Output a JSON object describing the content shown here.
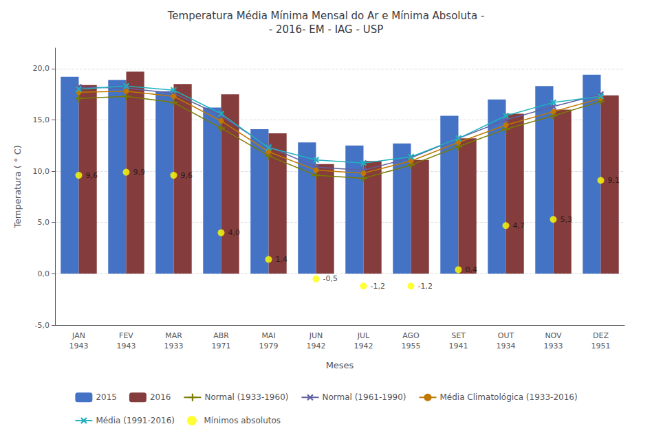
{
  "chart_data": {
    "type": "bar",
    "title": "Temperatura Média Mínima Mensal do Ar e Mínima Absoluta -\n- 2016- EM - IAG - USP",
    "xlabel": "Meses",
    "ylabel": "Temperatura ( ° C)",
    "categories": [
      "JAN\n1943",
      "FEV\n1943",
      "MAR\n1933",
      "ABR\n1971",
      "MAI\n1979",
      "JUN\n1942",
      "JUL\n1942",
      "AGO\n1955",
      "SET\n1941",
      "OUT\n1934",
      "NOV\n1933",
      "DEZ\n1951"
    ],
    "series": [
      {
        "name": "2015",
        "type": "bar",
        "color": "#4472C4",
        "values": [
          19.2,
          18.9,
          17.8,
          16.2,
          14.1,
          12.8,
          12.5,
          12.7,
          15.4,
          17.0,
          18.3,
          19.4
        ]
      },
      {
        "name": "2016",
        "type": "bar",
        "color": "#843C3C",
        "values": [
          18.4,
          19.7,
          18.5,
          17.5,
          13.7,
          10.7,
          11.0,
          11.1,
          13.2,
          15.6,
          16.0,
          17.4
        ]
      },
      {
        "name": "Normal (1933-1960)",
        "type": "line",
        "color": "#7B7B00",
        "marker": "plus",
        "values": [
          17.1,
          17.3,
          16.7,
          14.2,
          11.5,
          9.6,
          9.3,
          10.6,
          12.4,
          14.1,
          15.4,
          16.8
        ]
      },
      {
        "name": "Normal (1961-1990)",
        "type": "line",
        "color": "#6060A0",
        "marker": "x",
        "values": [
          18.2,
          18.1,
          17.6,
          15.4,
          12.4,
          10.4,
          10.1,
          11.3,
          13.2,
          15.0,
          16.3,
          17.5
        ]
      },
      {
        "name": "Média Climatológica (1933-2016)",
        "type": "line",
        "color": "#C07800",
        "marker": "circle",
        "values": [
          17.7,
          17.8,
          17.3,
          14.9,
          11.9,
          10.1,
          9.8,
          11.0,
          12.8,
          14.5,
          15.8,
          17.1
        ]
      },
      {
        "name": "Média (1991-2016)",
        "type": "line",
        "color": "#20B0C0",
        "marker": "x",
        "values": [
          18.0,
          18.3,
          17.9,
          15.6,
          12.3,
          11.1,
          10.8,
          11.4,
          13.2,
          15.4,
          16.7,
          17.3
        ]
      },
      {
        "name": "Mínimos absolutos",
        "type": "scatter",
        "color": "#FFFF00",
        "marker": "circle",
        "data_labels": true,
        "values": [
          9.6,
          9.9,
          9.6,
          4.0,
          1.4,
          -0.5,
          -1.2,
          -1.2,
          0.4,
          4.7,
          5.3,
          9.1
        ],
        "value_labels": [
          "9,6",
          "9,9",
          "9,6",
          "4,0",
          "1,4",
          "-0,5",
          "-1,2",
          "-1,2",
          "0,4",
          "4,7",
          "5,3",
          "9,1"
        ]
      }
    ],
    "ylim": [
      -5.0,
      22.0
    ],
    "yticks": [
      {
        "value": -5.0,
        "label": "-5,0"
      },
      {
        "value": 0.0,
        "label": "0,0"
      },
      {
        "value": 5.0,
        "label": "5,0"
      },
      {
        "value": 10.0,
        "label": "10,0"
      },
      {
        "value": 15.0,
        "label": "15,0"
      },
      {
        "value": 20.0,
        "label": "20,0"
      }
    ],
    "grid": true,
    "legend": "bottom"
  }
}
